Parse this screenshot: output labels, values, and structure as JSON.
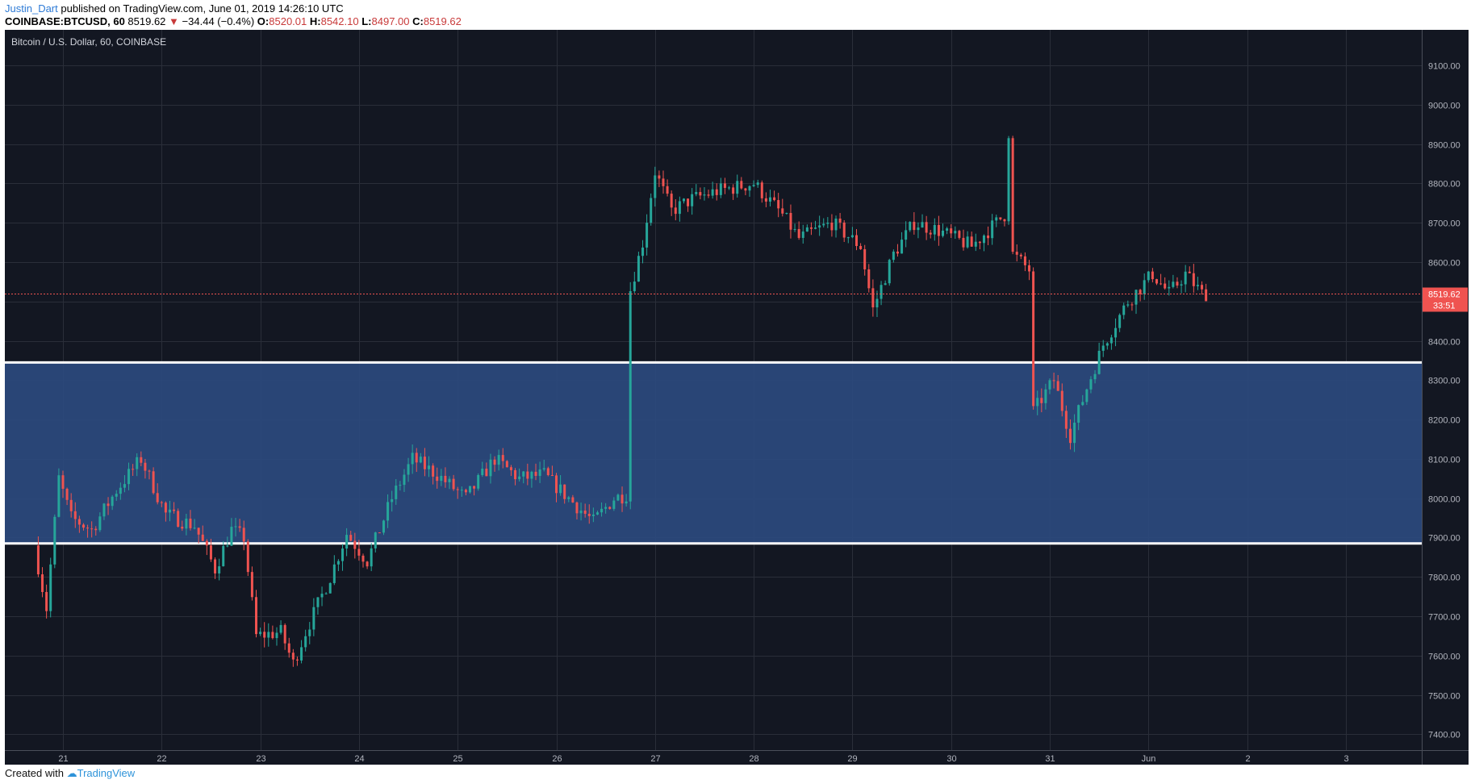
{
  "header": {
    "author": "Justin_Dart",
    "published": "published on TradingView.com, June 01, 2019 14:26:10 UTC",
    "symbol": "COINBASE:BTCUSD, 60",
    "last": "8519.62",
    "change_arrow": "▼",
    "change": "−34.44 (−0.4%)",
    "o_label": "O:",
    "o_value": "8520.01",
    "h_label": "H:",
    "h_value": "8542.10",
    "l_label": "L:",
    "l_value": "8497.00",
    "c_label": "C:",
    "c_value": "8519.62"
  },
  "footer": {
    "created_with": "Created with",
    "brand": "TradingView"
  },
  "colors": {
    "background": "#131722",
    "grid": "#2a2e39",
    "up": "#26a69a",
    "down": "#ef5350",
    "zone": "#2b4a7e",
    "zone_line": "#ffffff",
    "price_line": "#ef5350"
  },
  "chart_data": {
    "type": "candlestick",
    "title": "Bitcoin / U.S. Dollar, 60, COINBASE",
    "ylim": [
      7360,
      9190
    ],
    "y_ticks": [
      "7400.00",
      "7500.00",
      "7600.00",
      "7700.00",
      "7800.00",
      "7900.00",
      "8000.00",
      "8100.00",
      "8200.00",
      "8300.00",
      "8400.00",
      "8500.00",
      "8600.00",
      "8700.00",
      "8800.00",
      "8900.00",
      "9000.00",
      "9100.00"
    ],
    "x_ticks": [
      "21",
      "22",
      "23",
      "24",
      "25",
      "26",
      "27",
      "28",
      "29",
      "30",
      "31",
      "Jun",
      "2",
      "3"
    ],
    "last_price": "8519.62",
    "countdown": "33:51",
    "support_zone": {
      "low": 7885,
      "high": 8345
    },
    "series": [
      {
        "name": "BTCUSD",
        "anchors": [
          [
            "20 18:00",
            7880
          ],
          [
            "20 21:00",
            7720
          ],
          [
            "21 00:00",
            8050
          ],
          [
            "21 03:00",
            7950
          ],
          [
            "21 08:00",
            7920
          ],
          [
            "21 14:00",
            8020
          ],
          [
            "21 20:00",
            8100
          ],
          [
            "22 02:00",
            7960
          ],
          [
            "22 09:00",
            7930
          ],
          [
            "22 14:00",
            7820
          ],
          [
            "22 18:00",
            7920
          ],
          [
            "22 21:00",
            7900
          ],
          [
            "23 00:00",
            7650
          ],
          [
            "23 06:00",
            7660
          ],
          [
            "23 09:00",
            7580
          ],
          [
            "23 12:00",
            7660
          ],
          [
            "23 18:00",
            7800
          ],
          [
            "23 22:00",
            7910
          ],
          [
            "24 03:00",
            7840
          ],
          [
            "24 09:00",
            8000
          ],
          [
            "24 14:00",
            8100
          ],
          [
            "24 20:00",
            8060
          ],
          [
            "25 03:00",
            8000
          ],
          [
            "25 10:00",
            8100
          ],
          [
            "25 16:00",
            8050
          ],
          [
            "25 22:00",
            8060
          ],
          [
            "26 04:00",
            8000
          ],
          [
            "26 10:00",
            7940
          ],
          [
            "26 15:00",
            8000
          ],
          [
            "26 18:00",
            8010
          ],
          [
            "26 19:00",
            8530
          ],
          [
            "26 22:00",
            8650
          ],
          [
            "27 01:00",
            8830
          ],
          [
            "27 05:00",
            8730
          ],
          [
            "27 10:00",
            8760
          ],
          [
            "27 16:00",
            8780
          ],
          [
            "28 01:00",
            8800
          ],
          [
            "28 08:00",
            8720
          ],
          [
            "28 12:00",
            8660
          ],
          [
            "28 20:00",
            8700
          ],
          [
            "29 03:00",
            8640
          ],
          [
            "29 06:00",
            8480
          ],
          [
            "29 11:00",
            8620
          ],
          [
            "29 16:00",
            8700
          ],
          [
            "29 22:00",
            8680
          ],
          [
            "30 06:00",
            8640
          ],
          [
            "30 12:00",
            8700
          ],
          [
            "30 14:00",
            8720
          ],
          [
            "30 15:00",
            8930
          ],
          [
            "30 16:00",
            8620
          ],
          [
            "30 20:00",
            8580
          ],
          [
            "30 21:00",
            8220
          ],
          [
            "31 02:00",
            8300
          ],
          [
            "31 06:00",
            8160
          ],
          [
            "31 10:00",
            8280
          ],
          [
            "31 14:00",
            8390
          ],
          [
            "31 20:00",
            8500
          ],
          [
            "32 02:00",
            8570
          ],
          [
            "32 06:00",
            8520
          ],
          [
            "32 10:00",
            8570
          ],
          [
            "32 14:00",
            8520
          ]
        ]
      }
    ]
  }
}
